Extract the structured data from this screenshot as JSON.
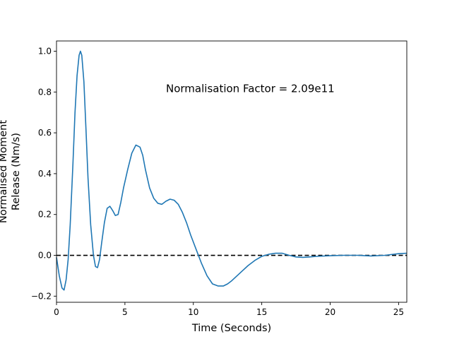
{
  "chart_data": {
    "type": "line",
    "title": "",
    "xlabel": "Time (Seconds)",
    "ylabel_lines": [
      "Normalised Moment",
      "Release (Nm/s)"
    ],
    "xlim": [
      0,
      25.6
    ],
    "ylim": [
      -0.23,
      1.05
    ],
    "xticks": [
      0,
      5,
      10,
      15,
      20,
      25
    ],
    "yticks": [
      -0.2,
      0.0,
      0.2,
      0.4,
      0.6,
      0.8,
      1.0
    ],
    "ytick_labels": [
      "−0.2",
      "0.0",
      "0.2",
      "0.4",
      "0.6",
      "0.8",
      "1.0"
    ],
    "annotation": "Normalisation Factor = 2.09e11",
    "reference_line": {
      "y": 0,
      "style": "dashed",
      "color": "#000000"
    },
    "grid": false,
    "series": [
      {
        "color": "#1f77b4",
        "x": [
          0,
          0.2,
          0.4,
          0.55,
          0.7,
          0.85,
          1.0,
          1.2,
          1.35,
          1.5,
          1.65,
          1.75,
          1.85,
          2.0,
          2.15,
          2.3,
          2.5,
          2.7,
          2.85,
          3.0,
          3.15,
          3.3,
          3.5,
          3.7,
          3.9,
          4.1,
          4.3,
          4.5,
          4.7,
          4.9,
          5.2,
          5.5,
          5.8,
          6.1,
          6.3,
          6.5,
          6.8,
          7.1,
          7.4,
          7.7,
          8.0,
          8.3,
          8.6,
          8.9,
          9.2,
          9.5,
          9.8,
          10.2,
          10.6,
          11.0,
          11.4,
          11.8,
          12.2,
          12.5,
          12.8,
          13.2,
          13.6,
          14.0,
          14.5,
          15.0,
          15.5,
          16.0,
          16.5,
          17.0,
          17.5,
          18.0,
          18.5,
          19.0,
          20.0,
          21.0,
          22.0,
          23.0,
          24.0,
          25.0,
          25.6
        ],
        "y": [
          -0.01,
          -0.1,
          -0.16,
          -0.17,
          -0.12,
          -0.02,
          0.15,
          0.45,
          0.7,
          0.88,
          0.98,
          1.0,
          0.98,
          0.85,
          0.62,
          0.38,
          0.15,
          0.0,
          -0.055,
          -0.06,
          -0.02,
          0.06,
          0.16,
          0.23,
          0.24,
          0.22,
          0.195,
          0.2,
          0.26,
          0.33,
          0.42,
          0.5,
          0.54,
          0.53,
          0.49,
          0.42,
          0.33,
          0.28,
          0.255,
          0.25,
          0.265,
          0.275,
          0.27,
          0.25,
          0.21,
          0.16,
          0.1,
          0.03,
          -0.04,
          -0.1,
          -0.14,
          -0.15,
          -0.15,
          -0.14,
          -0.125,
          -0.1,
          -0.075,
          -0.05,
          -0.025,
          -0.005,
          0.005,
          0.01,
          0.01,
          0.0,
          -0.008,
          -0.01,
          -0.008,
          -0.005,
          -0.002,
          0.0,
          0.0,
          -0.003,
          0.0,
          0.008,
          0.01
        ]
      }
    ]
  }
}
